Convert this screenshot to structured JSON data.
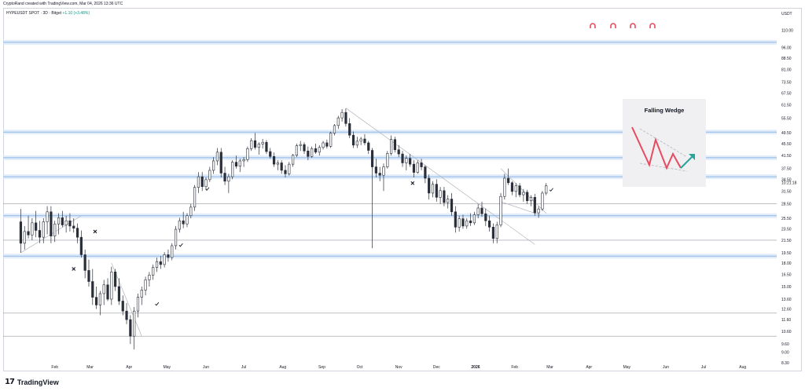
{
  "header": {
    "credit": "CryptoRand created with TradingView.com, Mar 04, 2026 13:36 UTC",
    "symbol": "HYPEUSDT SPOT · 3D · Bitget",
    "change": "+1.10 (+3.48%)"
  },
  "footer": {
    "brand": "TradingView",
    "logo_mark": "17"
  },
  "axis": {
    "unit": "USDT",
    "price_tag": "10:21:18"
  },
  "colors": {
    "up": "#ffffff",
    "down": "#2a2e39",
    "wick": "#2a2e39",
    "zone_line": "#8db5e8",
    "zone_glow": "#dbe8f7",
    "gray_line": "#9598a1",
    "trend": "#b2b5be",
    "arrow_red": "#e84a5f",
    "arrow_green": "#26a69a",
    "card_bg": "#f0f0f2"
  },
  "icons": [
    "magnet-icon",
    "magnet-icon",
    "magnet-icon",
    "magnet-icon"
  ],
  "legend_card": {
    "title": "Falling Wedge"
  },
  "chart_data": {
    "type": "candlestick",
    "title": "",
    "y_scale": "log",
    "ylim": [
      8.3,
      120
    ],
    "y_ticks": [
      "110.00",
      "96.00",
      "88.50",
      "81.00",
      "73.50",
      "67.50",
      "61.50",
      "55.50",
      "49.50",
      "45.50",
      "41.50",
      "37.50",
      "34.50",
      "31.50",
      "28.50",
      "25.50",
      "23.50",
      "21.50",
      "19.50",
      "18.00",
      "16.50",
      "15.00",
      "13.60",
      "12.60",
      "11.60",
      "10.60",
      "9.60",
      "9.00",
      "8.30"
    ],
    "x_ticks": [
      "Feb",
      "Mar",
      "Apr",
      "May",
      "Jun",
      "Jul",
      "Aug",
      "Sep",
      "Oct",
      "Nov",
      "Dec",
      "2026",
      "Feb",
      "Mar",
      "Apr",
      "May",
      "Jun",
      "Jul",
      "Aug"
    ],
    "horizontal_zones": [
      100,
      49.8,
      40.8,
      35.2,
      26.0,
      19.0
    ],
    "horizontal_lines": [
      28.5,
      21.5,
      12.2,
      10.2
    ],
    "markers_check": [
      {
        "month": "Apr",
        "price": 13.1
      },
      {
        "month": "May",
        "price": 20.7
      },
      {
        "month": "Jun",
        "price": 32.0
      },
      {
        "month": "Mar",
        "price": 31.8
      }
    ],
    "markers_cross": [
      {
        "month": "Mar",
        "price": 23.0
      },
      {
        "month": "Feb",
        "price": 17.2
      },
      {
        "month": "Nov",
        "price": 33.5
      }
    ],
    "series": [
      {
        "date": "2025-01-05",
        "o": 24.8,
        "h": 27.4,
        "l": 19.5,
        "c": 21.0
      },
      {
        "date": "2025-01-08",
        "o": 21.0,
        "h": 24.0,
        "l": 20.0,
        "c": 23.0
      },
      {
        "date": "2025-01-11",
        "o": 23.0,
        "h": 26.0,
        "l": 21.8,
        "c": 22.4
      },
      {
        "date": "2025-01-14",
        "o": 22.4,
        "h": 25.5,
        "l": 21.5,
        "c": 24.6
      },
      {
        "date": "2025-01-17",
        "o": 24.6,
        "h": 27.0,
        "l": 22.0,
        "c": 23.2
      },
      {
        "date": "2025-01-20",
        "o": 23.2,
        "h": 25.0,
        "l": 21.0,
        "c": 22.0
      },
      {
        "date": "2025-01-23",
        "o": 22.0,
        "h": 25.5,
        "l": 21.0,
        "c": 24.8
      },
      {
        "date": "2025-01-26",
        "o": 24.8,
        "h": 28.0,
        "l": 22.5,
        "c": 26.8
      },
      {
        "date": "2025-01-29",
        "o": 26.8,
        "h": 28.0,
        "l": 21.0,
        "c": 22.2
      },
      {
        "date": "2025-02-01",
        "o": 22.2,
        "h": 25.0,
        "l": 21.2,
        "c": 24.4
      },
      {
        "date": "2025-02-04",
        "o": 24.4,
        "h": 26.5,
        "l": 22.5,
        "c": 25.6
      },
      {
        "date": "2025-02-07",
        "o": 25.6,
        "h": 27.0,
        "l": 23.8,
        "c": 24.2
      },
      {
        "date": "2025-02-10",
        "o": 24.2,
        "h": 26.0,
        "l": 22.8,
        "c": 25.0
      },
      {
        "date": "2025-02-13",
        "o": 25.0,
        "h": 26.5,
        "l": 23.0,
        "c": 24.0
      },
      {
        "date": "2025-02-16",
        "o": 24.0,
        "h": 25.5,
        "l": 22.8,
        "c": 23.6
      },
      {
        "date": "2025-02-19",
        "o": 23.6,
        "h": 24.5,
        "l": 21.0,
        "c": 22.0
      },
      {
        "date": "2025-02-22",
        "o": 22.0,
        "h": 23.2,
        "l": 18.8,
        "c": 19.2
      },
      {
        "date": "2025-02-25",
        "o": 19.2,
        "h": 20.0,
        "l": 16.0,
        "c": 17.0
      },
      {
        "date": "2025-02-28",
        "o": 17.0,
        "h": 18.5,
        "l": 15.0,
        "c": 15.6
      },
      {
        "date": "2025-03-03",
        "o": 15.6,
        "h": 17.2,
        "l": 13.0,
        "c": 13.8
      },
      {
        "date": "2025-03-06",
        "o": 13.8,
        "h": 15.0,
        "l": 12.6,
        "c": 13.0
      },
      {
        "date": "2025-03-09",
        "o": 13.0,
        "h": 14.5,
        "l": 12.0,
        "c": 14.2
      },
      {
        "date": "2025-03-12",
        "o": 14.2,
        "h": 15.8,
        "l": 13.0,
        "c": 15.2
      },
      {
        "date": "2025-03-15",
        "o": 15.2,
        "h": 16.0,
        "l": 13.4,
        "c": 13.6
      },
      {
        "date": "2025-03-18",
        "o": 13.6,
        "h": 17.5,
        "l": 13.0,
        "c": 16.8
      },
      {
        "date": "2025-03-21",
        "o": 16.8,
        "h": 17.2,
        "l": 14.5,
        "c": 15.0
      },
      {
        "date": "2025-03-24",
        "o": 15.0,
        "h": 16.0,
        "l": 13.0,
        "c": 13.4
      },
      {
        "date": "2025-03-27",
        "o": 13.4,
        "h": 14.0,
        "l": 12.0,
        "c": 12.4
      },
      {
        "date": "2025-03-30",
        "o": 12.4,
        "h": 13.2,
        "l": 11.2,
        "c": 11.6
      },
      {
        "date": "2025-04-02",
        "o": 11.6,
        "h": 12.0,
        "l": 9.6,
        "c": 10.2
      },
      {
        "date": "2025-04-05",
        "o": 10.2,
        "h": 12.8,
        "l": 9.2,
        "c": 12.4
      },
      {
        "date": "2025-04-08",
        "o": 12.4,
        "h": 14.2,
        "l": 11.8,
        "c": 13.8
      },
      {
        "date": "2025-04-11",
        "o": 13.8,
        "h": 15.0,
        "l": 13.0,
        "c": 14.6
      },
      {
        "date": "2025-04-14",
        "o": 14.6,
        "h": 16.2,
        "l": 14.0,
        "c": 15.8
      },
      {
        "date": "2025-04-17",
        "o": 15.8,
        "h": 16.8,
        "l": 15.0,
        "c": 16.4
      },
      {
        "date": "2025-04-20",
        "o": 16.4,
        "h": 17.8,
        "l": 15.8,
        "c": 17.4
      },
      {
        "date": "2025-04-23",
        "o": 17.4,
        "h": 18.8,
        "l": 16.8,
        "c": 18.2
      },
      {
        "date": "2025-04-26",
        "o": 18.2,
        "h": 19.0,
        "l": 17.2,
        "c": 17.8
      },
      {
        "date": "2025-04-29",
        "o": 17.8,
        "h": 19.6,
        "l": 17.4,
        "c": 19.2
      },
      {
        "date": "2025-05-02",
        "o": 19.2,
        "h": 20.0,
        "l": 18.2,
        "c": 18.8
      },
      {
        "date": "2025-05-05",
        "o": 18.8,
        "h": 21.0,
        "l": 18.4,
        "c": 20.6
      },
      {
        "date": "2025-05-08",
        "o": 20.6,
        "h": 24.0,
        "l": 20.0,
        "c": 23.4
      },
      {
        "date": "2025-05-11",
        "o": 23.4,
        "h": 25.6,
        "l": 22.8,
        "c": 25.0
      },
      {
        "date": "2025-05-14",
        "o": 25.0,
        "h": 26.8,
        "l": 23.6,
        "c": 24.4
      },
      {
        "date": "2025-05-17",
        "o": 24.4,
        "h": 26.5,
        "l": 23.8,
        "c": 26.0
      },
      {
        "date": "2025-05-20",
        "o": 26.0,
        "h": 28.5,
        "l": 25.5,
        "c": 27.8
      },
      {
        "date": "2025-05-23",
        "o": 27.8,
        "h": 33.0,
        "l": 27.0,
        "c": 32.4
      },
      {
        "date": "2025-05-26",
        "o": 32.4,
        "h": 36.5,
        "l": 31.0,
        "c": 35.2
      },
      {
        "date": "2025-05-29",
        "o": 35.2,
        "h": 36.5,
        "l": 31.5,
        "c": 32.6
      },
      {
        "date": "2025-06-01",
        "o": 32.6,
        "h": 35.0,
        "l": 31.8,
        "c": 34.4
      },
      {
        "date": "2025-06-04",
        "o": 34.4,
        "h": 38.0,
        "l": 33.8,
        "c": 37.0
      },
      {
        "date": "2025-06-07",
        "o": 37.0,
        "h": 41.0,
        "l": 36.0,
        "c": 39.8
      },
      {
        "date": "2025-06-10",
        "o": 39.8,
        "h": 44.0,
        "l": 38.5,
        "c": 42.6
      },
      {
        "date": "2025-06-13",
        "o": 42.6,
        "h": 44.0,
        "l": 35.0,
        "c": 36.2
      },
      {
        "date": "2025-06-16",
        "o": 36.2,
        "h": 38.0,
        "l": 33.0,
        "c": 34.0
      },
      {
        "date": "2025-06-19",
        "o": 34.0,
        "h": 36.0,
        "l": 31.0,
        "c": 35.2
      },
      {
        "date": "2025-06-22",
        "o": 35.2,
        "h": 40.0,
        "l": 34.5,
        "c": 39.4
      },
      {
        "date": "2025-06-25",
        "o": 39.4,
        "h": 41.5,
        "l": 37.5,
        "c": 38.2
      },
      {
        "date": "2025-06-28",
        "o": 38.2,
        "h": 40.5,
        "l": 36.5,
        "c": 39.8
      },
      {
        "date": "2025-07-01",
        "o": 39.8,
        "h": 41.0,
        "l": 38.0,
        "c": 40.2
      },
      {
        "date": "2025-07-04",
        "o": 40.2,
        "h": 44.5,
        "l": 39.5,
        "c": 43.8
      },
      {
        "date": "2025-07-07",
        "o": 43.8,
        "h": 47.5,
        "l": 43.0,
        "c": 46.6
      },
      {
        "date": "2025-07-10",
        "o": 46.6,
        "h": 49.5,
        "l": 43.5,
        "c": 44.2
      },
      {
        "date": "2025-07-13",
        "o": 44.2,
        "h": 46.0,
        "l": 41.8,
        "c": 45.4
      },
      {
        "date": "2025-07-16",
        "o": 45.4,
        "h": 47.2,
        "l": 43.8,
        "c": 46.0
      },
      {
        "date": "2025-07-19",
        "o": 46.0,
        "h": 46.8,
        "l": 42.0,
        "c": 42.8
      },
      {
        "date": "2025-07-22",
        "o": 42.8,
        "h": 44.0,
        "l": 40.5,
        "c": 41.2
      },
      {
        "date": "2025-07-25",
        "o": 41.2,
        "h": 42.5,
        "l": 38.0,
        "c": 38.8
      },
      {
        "date": "2025-07-28",
        "o": 38.8,
        "h": 40.0,
        "l": 37.0,
        "c": 39.2
      },
      {
        "date": "2025-07-31",
        "o": 39.2,
        "h": 40.0,
        "l": 36.0,
        "c": 37.0
      },
      {
        "date": "2025-08-03",
        "o": 37.0,
        "h": 38.5,
        "l": 35.0,
        "c": 36.0
      },
      {
        "date": "2025-08-06",
        "o": 36.0,
        "h": 39.5,
        "l": 35.5,
        "c": 38.8
      },
      {
        "date": "2025-08-09",
        "o": 38.8,
        "h": 42.0,
        "l": 38.0,
        "c": 41.6
      },
      {
        "date": "2025-08-12",
        "o": 41.6,
        "h": 45.5,
        "l": 41.0,
        "c": 44.8
      },
      {
        "date": "2025-08-15",
        "o": 44.8,
        "h": 46.5,
        "l": 43.0,
        "c": 45.2
      },
      {
        "date": "2025-08-18",
        "o": 45.2,
        "h": 46.0,
        "l": 42.0,
        "c": 43.0
      },
      {
        "date": "2025-08-21",
        "o": 43.0,
        "h": 44.5,
        "l": 40.0,
        "c": 41.2
      },
      {
        "date": "2025-08-24",
        "o": 41.2,
        "h": 44.5,
        "l": 40.8,
        "c": 43.8
      },
      {
        "date": "2025-08-27",
        "o": 43.8,
        "h": 45.5,
        "l": 42.0,
        "c": 42.6
      },
      {
        "date": "2025-08-30",
        "o": 42.6,
        "h": 45.0,
        "l": 41.5,
        "c": 44.2
      },
      {
        "date": "2025-09-02",
        "o": 44.2,
        "h": 46.5,
        "l": 43.5,
        "c": 45.8
      },
      {
        "date": "2025-09-05",
        "o": 45.8,
        "h": 47.0,
        "l": 43.8,
        "c": 44.6
      },
      {
        "date": "2025-09-08",
        "o": 44.6,
        "h": 50.0,
        "l": 44.0,
        "c": 49.4
      },
      {
        "date": "2025-09-11",
        "o": 49.4,
        "h": 53.0,
        "l": 48.5,
        "c": 52.4
      },
      {
        "date": "2025-09-14",
        "o": 52.4,
        "h": 56.5,
        "l": 51.0,
        "c": 55.6
      },
      {
        "date": "2025-09-17",
        "o": 55.6,
        "h": 59.5,
        "l": 54.0,
        "c": 58.0
      },
      {
        "date": "2025-09-20",
        "o": 58.0,
        "h": 59.8,
        "l": 52.0,
        "c": 53.2
      },
      {
        "date": "2025-09-23",
        "o": 53.2,
        "h": 55.5,
        "l": 47.5,
        "c": 48.6
      },
      {
        "date": "2025-09-26",
        "o": 48.6,
        "h": 50.0,
        "l": 44.0,
        "c": 45.0
      },
      {
        "date": "2025-09-29",
        "o": 45.0,
        "h": 48.0,
        "l": 44.0,
        "c": 46.4
      },
      {
        "date": "2025-10-02",
        "o": 46.4,
        "h": 48.0,
        "l": 45.0,
        "c": 47.2
      },
      {
        "date": "2025-10-05",
        "o": 47.2,
        "h": 49.0,
        "l": 45.0,
        "c": 45.8
      },
      {
        "date": "2025-10-08",
        "o": 45.8,
        "h": 46.5,
        "l": 42.0,
        "c": 43.2
      },
      {
        "date": "2025-10-11",
        "o": 43.2,
        "h": 44.0,
        "l": 20.2,
        "c": 38.0
      },
      {
        "date": "2025-10-14",
        "o": 38.0,
        "h": 40.5,
        "l": 35.0,
        "c": 36.2
      },
      {
        "date": "2025-10-17",
        "o": 36.2,
        "h": 38.0,
        "l": 34.0,
        "c": 35.6
      },
      {
        "date": "2025-10-20",
        "o": 35.6,
        "h": 39.0,
        "l": 31.5,
        "c": 38.0
      },
      {
        "date": "2025-10-23",
        "o": 38.0,
        "h": 43.0,
        "l": 37.5,
        "c": 42.2
      },
      {
        "date": "2025-10-26",
        "o": 42.2,
        "h": 48.5,
        "l": 41.5,
        "c": 47.0
      },
      {
        "date": "2025-10-29",
        "o": 47.0,
        "h": 48.0,
        "l": 42.5,
        "c": 43.4
      },
      {
        "date": "2025-11-01",
        "o": 43.4,
        "h": 45.0,
        "l": 41.0,
        "c": 42.0
      },
      {
        "date": "2025-11-04",
        "o": 42.0,
        "h": 43.0,
        "l": 38.0,
        "c": 39.2
      },
      {
        "date": "2025-11-07",
        "o": 39.2,
        "h": 41.5,
        "l": 37.0,
        "c": 40.6
      },
      {
        "date": "2025-11-10",
        "o": 40.6,
        "h": 42.0,
        "l": 38.0,
        "c": 38.8
      },
      {
        "date": "2025-11-13",
        "o": 38.8,
        "h": 40.0,
        "l": 35.0,
        "c": 36.4
      },
      {
        "date": "2025-11-16",
        "o": 36.4,
        "h": 40.0,
        "l": 36.0,
        "c": 39.2
      },
      {
        "date": "2025-11-19",
        "o": 39.2,
        "h": 40.5,
        "l": 37.0,
        "c": 38.0
      },
      {
        "date": "2025-11-22",
        "o": 38.0,
        "h": 38.5,
        "l": 33.5,
        "c": 34.8
      },
      {
        "date": "2025-11-25",
        "o": 34.8,
        "h": 35.8,
        "l": 29.5,
        "c": 31.0
      },
      {
        "date": "2025-11-28",
        "o": 31.0,
        "h": 34.0,
        "l": 30.0,
        "c": 33.2
      },
      {
        "date": "2025-12-01",
        "o": 33.2,
        "h": 34.5,
        "l": 29.0,
        "c": 30.0
      },
      {
        "date": "2025-12-04",
        "o": 30.0,
        "h": 32.5,
        "l": 28.5,
        "c": 31.6
      },
      {
        "date": "2025-12-07",
        "o": 31.6,
        "h": 32.5,
        "l": 28.0,
        "c": 28.8
      },
      {
        "date": "2025-12-10",
        "o": 28.8,
        "h": 30.5,
        "l": 27.5,
        "c": 29.6
      },
      {
        "date": "2025-12-13",
        "o": 29.6,
        "h": 31.0,
        "l": 26.0,
        "c": 26.8
      },
      {
        "date": "2025-12-16",
        "o": 26.8,
        "h": 28.0,
        "l": 22.8,
        "c": 23.8
      },
      {
        "date": "2025-12-19",
        "o": 23.8,
        "h": 26.0,
        "l": 23.0,
        "c": 25.4
      },
      {
        "date": "2025-12-22",
        "o": 25.4,
        "h": 26.2,
        "l": 23.5,
        "c": 24.0
      },
      {
        "date": "2025-12-25",
        "o": 24.0,
        "h": 25.5,
        "l": 23.5,
        "c": 25.0
      },
      {
        "date": "2025-12-28",
        "o": 25.0,
        "h": 26.5,
        "l": 24.0,
        "c": 24.6
      },
      {
        "date": "2025-12-31",
        "o": 24.6,
        "h": 26.8,
        "l": 24.2,
        "c": 26.2
      },
      {
        "date": "2026-01-03",
        "o": 26.2,
        "h": 28.5,
        "l": 25.5,
        "c": 27.6
      },
      {
        "date": "2026-01-06",
        "o": 27.6,
        "h": 29.0,
        "l": 25.8,
        "c": 26.4
      },
      {
        "date": "2026-01-09",
        "o": 26.4,
        "h": 27.5,
        "l": 24.0,
        "c": 25.0
      },
      {
        "date": "2026-01-12",
        "o": 25.0,
        "h": 26.0,
        "l": 23.0,
        "c": 23.8
      },
      {
        "date": "2026-01-15",
        "o": 23.8,
        "h": 24.5,
        "l": 21.0,
        "c": 21.8
      },
      {
        "date": "2026-01-18",
        "o": 21.8,
        "h": 24.8,
        "l": 21.0,
        "c": 24.2
      },
      {
        "date": "2026-01-21",
        "o": 24.2,
        "h": 31.0,
        "l": 23.8,
        "c": 30.2
      },
      {
        "date": "2026-01-24",
        "o": 30.2,
        "h": 36.0,
        "l": 29.5,
        "c": 34.8
      },
      {
        "date": "2026-01-27",
        "o": 34.8,
        "h": 37.5,
        "l": 33.0,
        "c": 33.6
      },
      {
        "date": "2026-01-30",
        "o": 33.6,
        "h": 34.0,
        "l": 30.5,
        "c": 31.4
      },
      {
        "date": "2026-02-02",
        "o": 31.4,
        "h": 33.5,
        "l": 30.0,
        "c": 32.8
      },
      {
        "date": "2026-02-05",
        "o": 32.8,
        "h": 33.5,
        "l": 30.0,
        "c": 30.6
      },
      {
        "date": "2026-02-08",
        "o": 30.6,
        "h": 32.0,
        "l": 29.0,
        "c": 31.2
      },
      {
        "date": "2026-02-11",
        "o": 31.2,
        "h": 31.8,
        "l": 28.5,
        "c": 29.2
      },
      {
        "date": "2026-02-14",
        "o": 29.2,
        "h": 30.5,
        "l": 28.0,
        "c": 30.0
      },
      {
        "date": "2026-02-17",
        "o": 30.0,
        "h": 30.8,
        "l": 26.0,
        "c": 26.6
      },
      {
        "date": "2026-02-20",
        "o": 26.6,
        "h": 28.0,
        "l": 25.6,
        "c": 27.4
      },
      {
        "date": "2026-02-23",
        "o": 27.4,
        "h": 31.5,
        "l": 27.0,
        "c": 31.0
      },
      {
        "date": "2026-02-26",
        "o": 31.0,
        "h": 33.5,
        "l": 30.5,
        "c": 32.8
      }
    ]
  }
}
